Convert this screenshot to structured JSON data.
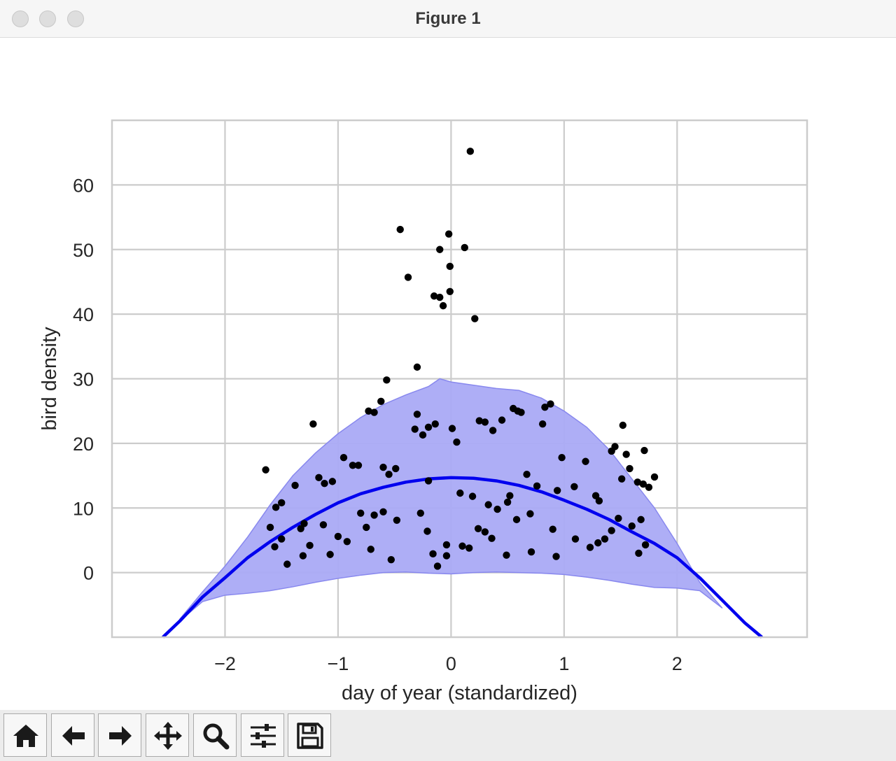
{
  "window": {
    "title": "Figure 1"
  },
  "toolbar": {
    "buttons": [
      {
        "name": "home-button",
        "icon": "home-icon"
      },
      {
        "name": "back-button",
        "icon": "arrow-left-icon"
      },
      {
        "name": "forward-button",
        "icon": "arrow-right-icon"
      },
      {
        "name": "pan-button",
        "icon": "move-icon"
      },
      {
        "name": "zoom-button",
        "icon": "magnifier-icon"
      },
      {
        "name": "configure-subplots-button",
        "icon": "sliders-icon"
      },
      {
        "name": "save-button",
        "icon": "floppy-disk-icon"
      }
    ]
  },
  "chart_data": {
    "type": "scatter",
    "xlabel": "day of year (standardized)",
    "ylabel": "bird density",
    "xlim": [
      -3.0,
      3.15
    ],
    "ylim": [
      -10,
      70
    ],
    "xticks": [
      -2,
      -1,
      0,
      1,
      2
    ],
    "xtick_labels": [
      "−2",
      "−1",
      "0",
      "1",
      "2"
    ],
    "yticks": [
      0,
      10,
      20,
      30,
      40,
      50,
      60
    ],
    "ytick_labels": [
      "0",
      "10",
      "20",
      "30",
      "40",
      "50",
      "60"
    ],
    "grid": true,
    "colors": {
      "points": "#000000",
      "mean_line": "#0000ee",
      "band": "#aaaaf6",
      "band_edge": "#8888ee",
      "grid": "#cccccc"
    },
    "mean_line": {
      "x": [
        -2.55,
        -2.4,
        -2.2,
        -2.0,
        -1.8,
        -1.6,
        -1.4,
        -1.2,
        -1.0,
        -0.8,
        -0.6,
        -0.4,
        -0.2,
        0.0,
        0.2,
        0.4,
        0.6,
        0.8,
        1.0,
        1.2,
        1.4,
        1.6,
        1.8,
        2.0,
        2.2,
        2.4,
        2.6,
        2.75
      ],
      "y": [
        -10,
        -7.5,
        -3.8,
        -0.8,
        2.3,
        4.8,
        7.0,
        9.0,
        10.8,
        12.2,
        13.2,
        14.0,
        14.5,
        14.7,
        14.6,
        14.2,
        13.5,
        12.5,
        11.2,
        9.8,
        8.2,
        6.3,
        4.5,
        2.3,
        -0.8,
        -4.3,
        -7.8,
        -10
      ]
    },
    "band_upper": {
      "x": [
        -2.4,
        -2.2,
        -2.0,
        -1.8,
        -1.6,
        -1.4,
        -1.2,
        -1.0,
        -0.8,
        -0.6,
        -0.4,
        -0.2,
        -0.1,
        0.0,
        0.2,
        0.4,
        0.6,
        0.8,
        1.0,
        1.2,
        1.4,
        1.6,
        1.8,
        2.0,
        2.2,
        2.4
      ],
      "y": [
        -7.2,
        -3.0,
        1.0,
        5.5,
        10.5,
        15.0,
        18.5,
        21.5,
        24.0,
        26.0,
        27.5,
        28.8,
        30.0,
        29.5,
        29.0,
        28.5,
        28.2,
        27.0,
        25.0,
        22.5,
        19.0,
        14.5,
        10.0,
        4.5,
        -1.5,
        -5.5
      ]
    },
    "band_lower": {
      "x": [
        -2.4,
        -2.2,
        -2.0,
        -1.8,
        -1.6,
        -1.4,
        -1.2,
        -1.0,
        -0.8,
        -0.6,
        -0.4,
        -0.2,
        0.0,
        0.2,
        0.4,
        0.6,
        0.8,
        1.0,
        1.2,
        1.4,
        1.6,
        1.8,
        2.0,
        2.2,
        2.4
      ],
      "y": [
        -7.5,
        -4.5,
        -3.5,
        -3.2,
        -2.8,
        -2.2,
        -1.5,
        -0.9,
        -0.4,
        0.0,
        0.1,
        -0.1,
        -0.2,
        0.0,
        0.1,
        0.0,
        -0.1,
        -0.3,
        -0.7,
        -1.2,
        -1.8,
        -2.3,
        -2.4,
        -2.8,
        -5.5
      ]
    },
    "points": {
      "x": [
        0.17,
        -0.45,
        -0.02,
        -0.1,
        0.12,
        -0.38,
        -0.01,
        -0.15,
        -0.1,
        -0.07,
        -0.01,
        0.21,
        -0.3,
        -0.57,
        -0.62,
        -0.73,
        -0.68,
        -1.22,
        -1.64,
        -0.3,
        -0.14,
        -0.32,
        -0.25,
        -0.2,
        0.05,
        0.01,
        0.25,
        0.3,
        0.37,
        0.45,
        0.55,
        0.62,
        0.83,
        0.88,
        0.59,
        0.81,
        1.19,
        1.42,
        1.45,
        1.52,
        1.71,
        1.58,
        1.65,
        1.7,
        1.75,
        1.8,
        1.51,
        1.55,
        -0.95,
        -0.82,
        -0.87,
        -0.6,
        -0.49,
        -0.55,
        -1.05,
        -1.12,
        -1.17,
        -1.38,
        -1.5,
        -1.55,
        -1.6,
        -1.56,
        -1.45,
        -1.31,
        -1.25,
        -1.0,
        -0.75,
        -0.48,
        -0.27,
        -0.21,
        0.08,
        0.19,
        0.33,
        0.41,
        0.52,
        0.67,
        0.76,
        0.98,
        1.09,
        1.31,
        1.42,
        1.48,
        1.6,
        1.72,
        -0.04,
        -0.16,
        0.24,
        0.36,
        0.71,
        -1.07,
        -0.92,
        -0.71,
        -0.53,
        -0.12,
        0.16,
        0.49,
        0.93,
        1.23,
        1.36,
        1.66,
        -0.04,
        0.1,
        0.3,
        0.5,
        0.7,
        0.9,
        1.1,
        1.3,
        -0.6,
        -0.8,
        -1.3,
        -1.5,
        -0.2,
        0.58,
        0.94,
        1.28,
        1.68,
        -1.33,
        -1.13,
        -0.68
      ],
      "y": [
        65.2,
        53.1,
        52.4,
        50.0,
        50.3,
        45.7,
        47.4,
        42.8,
        42.6,
        41.3,
        43.5,
        39.3,
        31.8,
        29.8,
        26.5,
        25.0,
        24.8,
        23.0,
        15.9,
        24.5,
        23.0,
        22.2,
        21.3,
        22.5,
        20.2,
        22.3,
        23.5,
        23.3,
        22.0,
        23.6,
        25.4,
        24.8,
        25.6,
        26.1,
        25.0,
        23.0,
        17.2,
        18.8,
        19.5,
        22.8,
        18.9,
        16.1,
        14.0,
        13.7,
        13.2,
        14.8,
        14.5,
        18.3,
        17.8,
        16.6,
        16.6,
        16.3,
        16.1,
        15.2,
        14.1,
        13.8,
        14.7,
        13.5,
        10.8,
        10.1,
        7.0,
        4.0,
        1.3,
        2.6,
        4.2,
        5.6,
        7.0,
        8.1,
        9.2,
        6.4,
        12.3,
        11.8,
        10.5,
        9.8,
        11.9,
        15.2,
        13.4,
        17.8,
        13.3,
        11.1,
        6.5,
        8.4,
        7.2,
        4.3,
        4.3,
        2.9,
        6.8,
        5.3,
        3.2,
        2.8,
        4.8,
        3.6,
        2.0,
        1.0,
        3.8,
        2.7,
        2.5,
        3.9,
        5.2,
        3.0,
        2.6,
        4.1,
        6.3,
        10.9,
        9.1,
        6.7,
        5.2,
        4.6,
        9.4,
        9.2,
        7.6,
        5.2,
        14.2,
        8.2,
        12.7,
        11.9,
        8.2,
        6.8,
        7.4,
        8.9
      ]
    }
  }
}
